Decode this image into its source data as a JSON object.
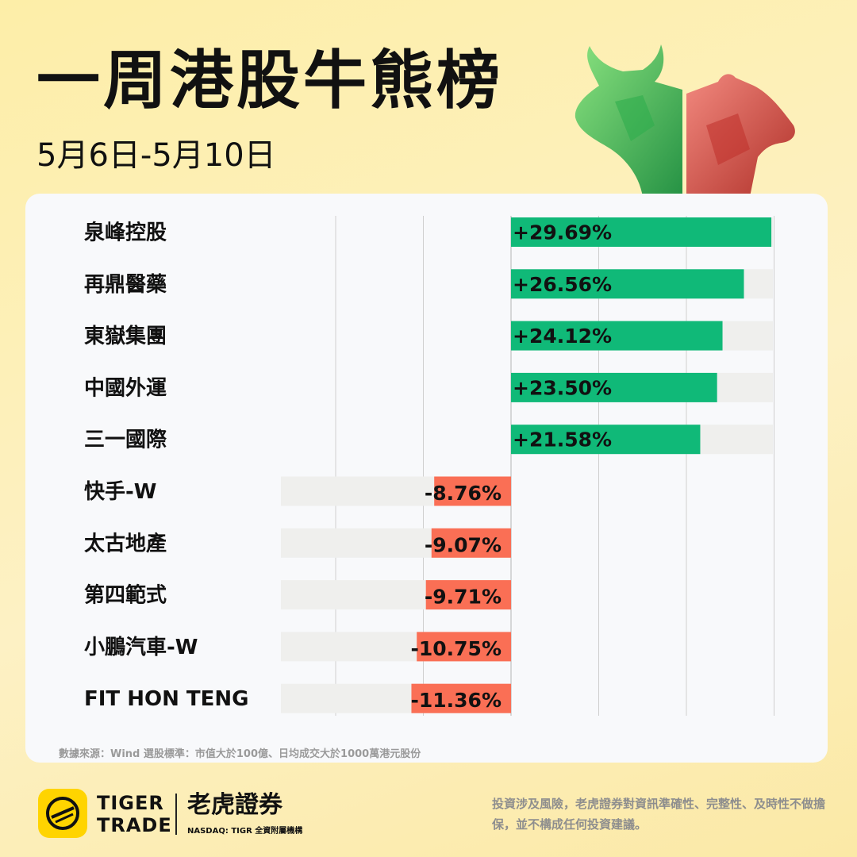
{
  "header": {
    "title": "一周港股牛熊榜",
    "subtitle": "5月6日-5月10日"
  },
  "chart_data": {
    "type": "bar",
    "orientation": "horizontal",
    "categories": [
      "泉峰控股",
      "再鼎醫藥",
      "東嶽集團",
      "中國外運",
      "三一國際",
      "快手-W",
      "太古地產",
      "第四範式",
      "小鵬汽車-W",
      "FIT HON TENG"
    ],
    "values": [
      29.69,
      26.56,
      24.12,
      23.5,
      21.58,
      -8.76,
      -9.07,
      -9.71,
      -10.75,
      -11.36
    ],
    "value_labels": [
      "+29.69%",
      "+26.56%",
      "+24.12%",
      "+23.50%",
      "+21.58%",
      "-8.76%",
      "-9.07%",
      "-9.71%",
      "-10.75%",
      "-11.36%"
    ],
    "xlim": [
      -30,
      30
    ],
    "grid": true,
    "colors": {
      "positive": "#10b978",
      "negative": "#fa6f55",
      "track": "#efefed",
      "grid": "#cfcfcf"
    }
  },
  "source_note": "數據來源：Wind  選股標準：市值大於100億、日均成交大於1000萬港元股份",
  "footer": {
    "brand_line1": "TIGER",
    "brand_line2": "TRADE",
    "brand_cn": "老虎證券",
    "brand_sub": "NASDAQ: TIGR 全資附屬機構",
    "disclaimer": "投資涉及風險，老虎證券對資訊準確性、完整性、及時性不做擔保，並不構成任何投資建議。"
  }
}
